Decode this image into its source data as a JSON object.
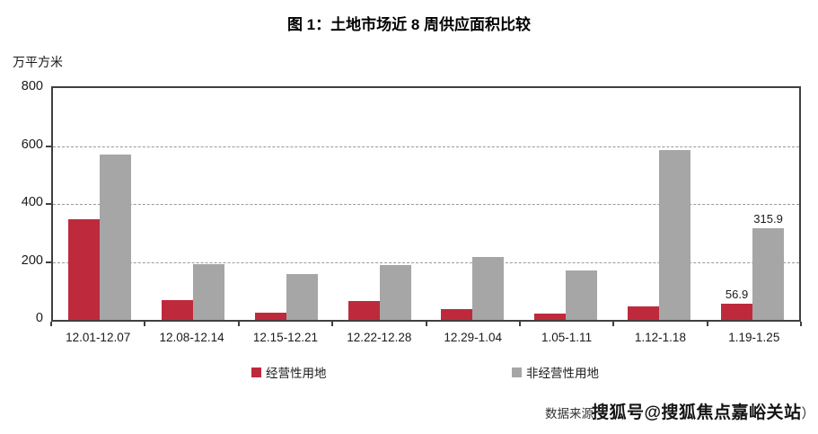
{
  "page": {
    "title": "图 1：土地市场近 8 周供应面积比较"
  },
  "chart": {
    "y_ticks": [
      "800",
      "600",
      "400",
      "200",
      "0"
    ],
    "source_prefix": "数据来源",
    "watermark": "搜狐号@搜狐焦点嘉峪关站",
    "source_suffix": "）"
  },
  "chart_data": {
    "type": "bar",
    "title": "图 1：土地市场近 8 周供应面积比较",
    "xlabel": "",
    "ylabel": "万平方米",
    "ylim": [
      0,
      800
    ],
    "y_tick_step": 200,
    "grid": "horizontal dashed lines at 200, 400, 600; solid chart border",
    "legend_position": "bottom",
    "categories": [
      "12.01-12.07",
      "12.08-12.14",
      "12.15-12.21",
      "12.22-12.28",
      "12.29-1.04",
      "1.05-1.11",
      "1.12-1.18",
      "1.19-1.25"
    ],
    "series": [
      {
        "name": "经营性用地",
        "color": "#be2a3c",
        "values": [
          348,
          68,
          25,
          65,
          37,
          22,
          48,
          56.9
        ],
        "point_labels": [
          null,
          null,
          null,
          null,
          null,
          null,
          null,
          "56.9"
        ]
      },
      {
        "name": "非经营性用地",
        "color": "#a6a6a6",
        "values": [
          570,
          193,
          158,
          190,
          217,
          170,
          586,
          315.9
        ],
        "point_labels": [
          null,
          null,
          null,
          null,
          null,
          null,
          null,
          "315.9"
        ]
      }
    ]
  }
}
